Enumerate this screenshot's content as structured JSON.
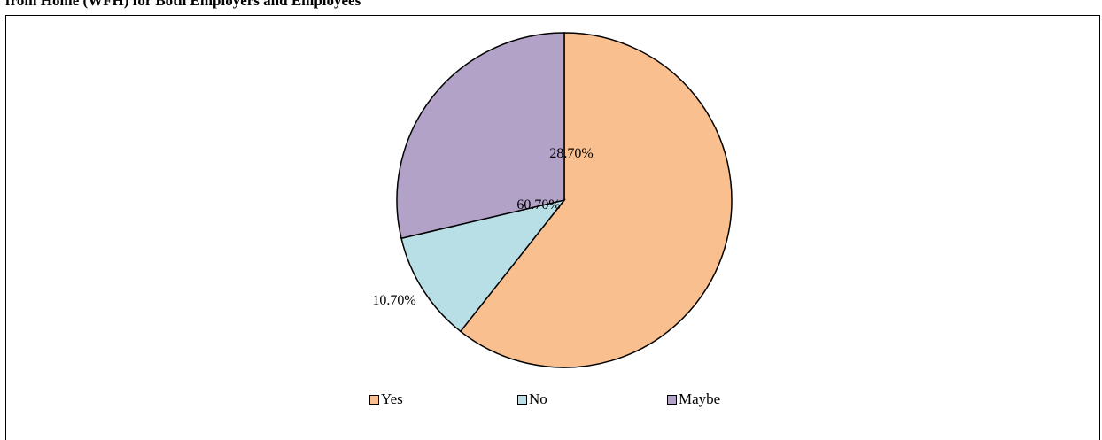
{
  "title": "from Home (WFH) for Both Employers and Employees",
  "chart_data": {
    "type": "pie",
    "title": "from Home (WFH) for Both Employers and Employees",
    "legend": "bottom",
    "slices": [
      {
        "label": "Yes",
        "value": 60.7,
        "display": "60.70%",
        "color": "#F9BF8F"
      },
      {
        "label": "No",
        "value": 10.7,
        "display": "10.70%",
        "color": "#B8DEE6"
      },
      {
        "label": "Maybe",
        "value": 28.7,
        "display": "28.70%",
        "color": "#B2A2C7"
      }
    ]
  }
}
